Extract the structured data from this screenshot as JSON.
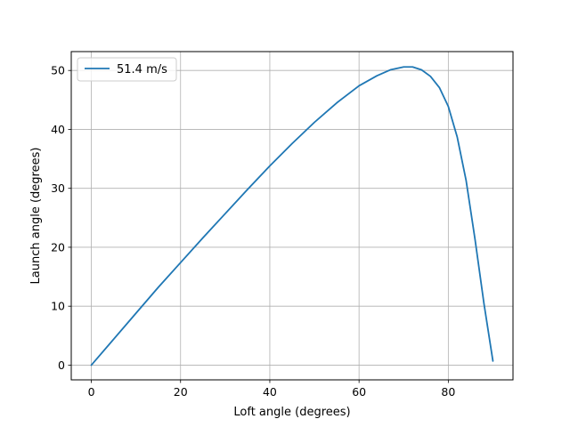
{
  "chart_data": {
    "type": "line",
    "title": "",
    "xlabel": "Loft angle (degrees)",
    "ylabel": "Launch angle (degrees)",
    "xlim": [
      -4.5,
      94.5
    ],
    "ylim": [
      -2.5,
      53.2
    ],
    "xticks": [
      0,
      20,
      40,
      60,
      80
    ],
    "yticks": [
      0,
      10,
      20,
      30,
      40,
      50
    ],
    "grid": true,
    "legend": "upper left",
    "colors": {
      "series": "#1f77b4",
      "grid": "#b0b0b0",
      "axes": "#000000"
    },
    "series": [
      {
        "name": "51.4 m/s",
        "x": [
          0,
          5,
          10,
          15,
          20,
          25,
          30,
          35,
          40,
          45,
          50,
          55,
          60,
          64,
          67,
          70,
          72,
          74,
          76,
          78,
          80,
          82,
          84,
          86,
          88,
          90
        ],
        "y": [
          0,
          4.4,
          8.8,
          13.2,
          17.4,
          21.6,
          25.7,
          29.8,
          33.8,
          37.6,
          41.2,
          44.5,
          47.4,
          49.1,
          50.1,
          50.6,
          50.6,
          50.1,
          49.0,
          47.1,
          43.9,
          38.7,
          31.3,
          21.3,
          10.4,
          0.7
        ]
      }
    ]
  }
}
